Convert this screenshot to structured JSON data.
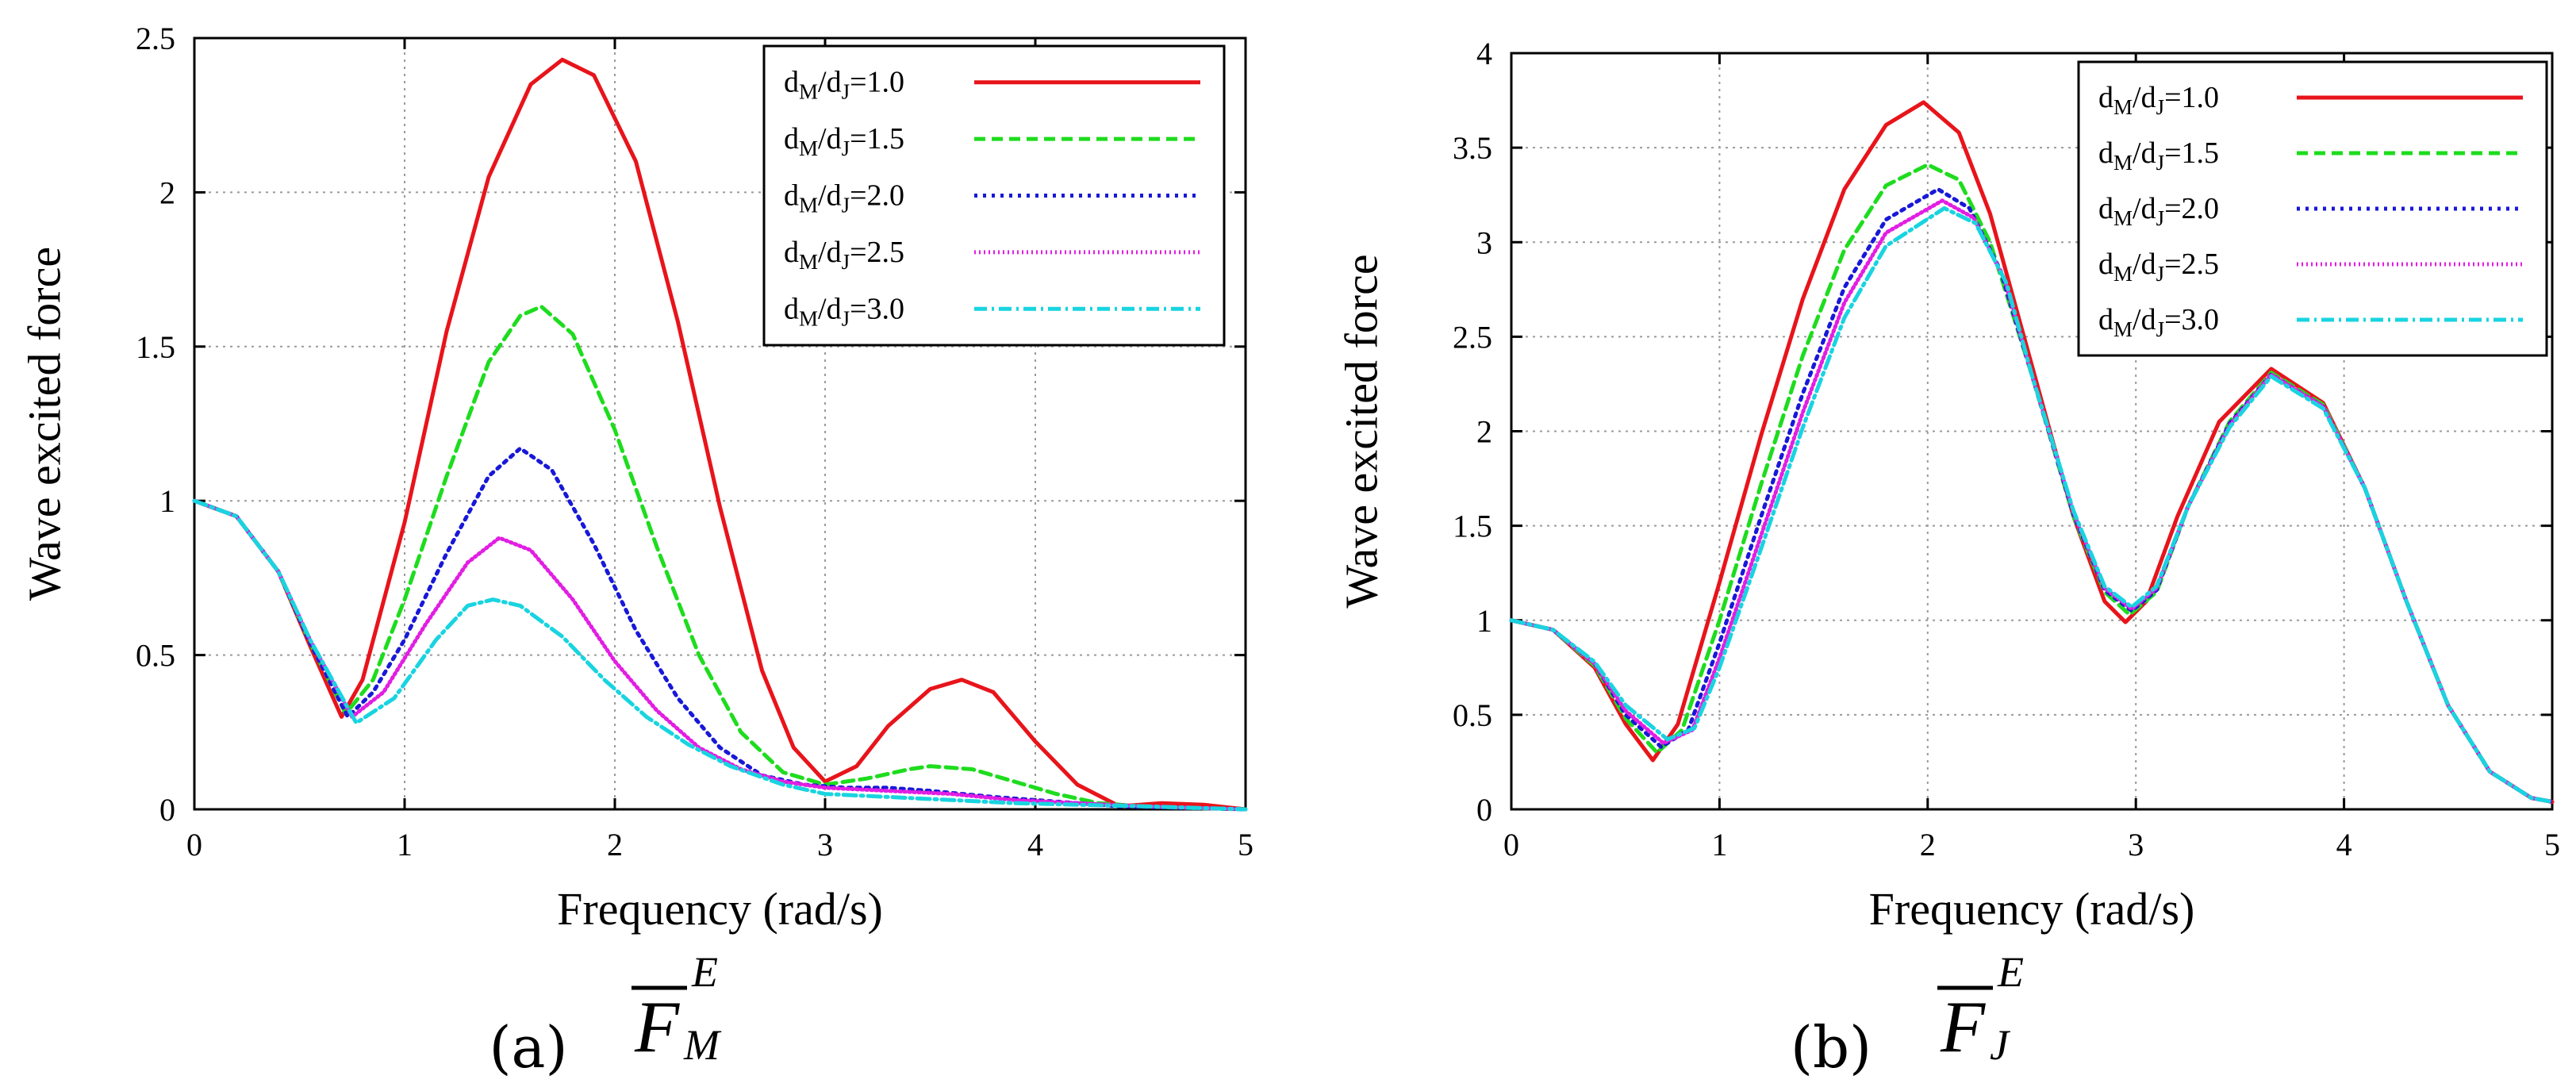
{
  "chart_data": [
    {
      "type": "line",
      "panel_label": "(a)",
      "symbol": {
        "base": "F",
        "sup": "E",
        "sub": "M"
      },
      "xlabel": "Frequency (rad/s)",
      "ylabel": "Wave excited force",
      "xlim": [
        0,
        5
      ],
      "ylim": [
        0,
        2.5
      ],
      "xticks": [
        "0",
        "1",
        "2",
        "3",
        "4",
        "5"
      ],
      "yticks": [
        "0",
        "0.5",
        "1",
        "1.5",
        "2",
        "2.5"
      ],
      "grid": true,
      "legend_position": "top-right",
      "series": [
        {
          "name": "dM/dJ=1.0",
          "legend": {
            "a": "d",
            "as": "M",
            "b": "/d",
            "bs": "J",
            "c": "=1.0"
          },
          "color": "#e8141b",
          "dash": "",
          "x": [
            0,
            0.2,
            0.4,
            0.55,
            0.7,
            0.8,
            1.0,
            1.2,
            1.4,
            1.6,
            1.75,
            1.9,
            2.1,
            2.3,
            2.5,
            2.7,
            2.85,
            3.0,
            3.15,
            3.3,
            3.5,
            3.65,
            3.8,
            4.0,
            4.2,
            4.4,
            4.6,
            4.8,
            5.0
          ],
          "y": [
            1.0,
            0.95,
            0.77,
            0.53,
            0.3,
            0.42,
            0.93,
            1.55,
            2.05,
            2.35,
            2.43,
            2.38,
            2.1,
            1.58,
            0.98,
            0.45,
            0.2,
            0.09,
            0.14,
            0.27,
            0.39,
            0.42,
            0.38,
            0.22,
            0.08,
            0.01,
            0.02,
            0.015,
            0.0
          ]
        },
        {
          "name": "dM/dJ=1.5",
          "legend": {
            "a": "d",
            "as": "M",
            "b": "/d",
            "bs": "J",
            "c": "=1.5"
          },
          "color": "#1edc1e",
          "dash": "14 8",
          "x": [
            0,
            0.2,
            0.4,
            0.55,
            0.72,
            0.85,
            1.0,
            1.2,
            1.4,
            1.55,
            1.65,
            1.8,
            2.0,
            2.2,
            2.4,
            2.6,
            2.8,
            3.0,
            3.2,
            3.4,
            3.5,
            3.7,
            3.9,
            4.1,
            4.3,
            4.5,
            4.7,
            5.0
          ],
          "y": [
            1.0,
            0.95,
            0.77,
            0.54,
            0.31,
            0.42,
            0.68,
            1.08,
            1.45,
            1.6,
            1.63,
            1.54,
            1.23,
            0.85,
            0.5,
            0.25,
            0.12,
            0.08,
            0.1,
            0.13,
            0.14,
            0.13,
            0.09,
            0.05,
            0.02,
            0.01,
            0.005,
            0.0
          ]
        },
        {
          "name": "dM/dJ=2.0",
          "legend": {
            "a": "d",
            "as": "M",
            "b": "/d",
            "bs": "J",
            "c": "=2.0"
          },
          "color": "#1818d8",
          "dash": "4 7",
          "x": [
            0,
            0.2,
            0.4,
            0.55,
            0.73,
            0.85,
            1.0,
            1.2,
            1.4,
            1.55,
            1.7,
            1.9,
            2.1,
            2.3,
            2.5,
            2.7,
            2.9,
            3.1,
            3.3,
            3.5,
            3.8,
            4.1,
            4.4,
            4.7,
            5.0
          ],
          "y": [
            1.0,
            0.95,
            0.77,
            0.54,
            0.3,
            0.38,
            0.55,
            0.83,
            1.08,
            1.17,
            1.1,
            0.86,
            0.58,
            0.36,
            0.2,
            0.11,
            0.08,
            0.07,
            0.07,
            0.06,
            0.04,
            0.025,
            0.01,
            0.005,
            0.0
          ]
        },
        {
          "name": "dM/dJ=2.5",
          "legend": {
            "a": "d",
            "as": "M",
            "b": "/d",
            "bs": "J",
            "c": "=2.5"
          },
          "color": "#e21ee2",
          "dash": "2 4",
          "x": [
            0,
            0.2,
            0.4,
            0.55,
            0.75,
            0.9,
            1.1,
            1.3,
            1.45,
            1.6,
            1.8,
            2.0,
            2.2,
            2.4,
            2.6,
            2.8,
            3.0,
            3.3,
            3.6,
            3.9,
            4.2,
            4.5,
            5.0
          ],
          "y": [
            1.0,
            0.95,
            0.77,
            0.55,
            0.3,
            0.38,
            0.6,
            0.8,
            0.88,
            0.84,
            0.68,
            0.48,
            0.32,
            0.2,
            0.13,
            0.09,
            0.07,
            0.06,
            0.05,
            0.03,
            0.02,
            0.01,
            0.0
          ]
        },
        {
          "name": "dM/dJ=3.0",
          "legend": {
            "a": "d",
            "as": "M",
            "b": "/d",
            "bs": "J",
            "c": "=3.0"
          },
          "color": "#18d4e0",
          "dash": "16 6 3 6",
          "x": [
            0,
            0.2,
            0.4,
            0.55,
            0.77,
            0.95,
            1.15,
            1.3,
            1.42,
            1.55,
            1.75,
            1.95,
            2.15,
            2.35,
            2.55,
            2.8,
            3.0,
            3.3,
            3.6,
            3.9,
            4.2,
            4.5,
            5.0
          ],
          "y": [
            1.0,
            0.95,
            0.77,
            0.55,
            0.28,
            0.36,
            0.55,
            0.66,
            0.68,
            0.66,
            0.56,
            0.42,
            0.3,
            0.21,
            0.14,
            0.08,
            0.05,
            0.04,
            0.03,
            0.02,
            0.015,
            0.01,
            0.0
          ]
        }
      ]
    },
    {
      "type": "line",
      "panel_label": "(b)",
      "symbol": {
        "base": "F",
        "sup": "E",
        "sub": "J"
      },
      "xlabel": "Frequency (rad/s)",
      "ylabel": "Wave excited force",
      "xlim": [
        0,
        5
      ],
      "ylim": [
        0,
        4
      ],
      "xticks": [
        "0",
        "1",
        "2",
        "3",
        "4",
        "5"
      ],
      "yticks": [
        "0",
        "0.5",
        "1",
        "1.5",
        "2",
        "2.5",
        "3",
        "3.5",
        "4"
      ],
      "grid": true,
      "legend_position": "top-right",
      "series": [
        {
          "name": "dM/dJ=1.0",
          "legend": {
            "a": "d",
            "as": "M",
            "b": "/d",
            "bs": "J",
            "c": "=1.0"
          },
          "color": "#e8141b",
          "dash": "",
          "x": [
            0,
            0.2,
            0.4,
            0.55,
            0.68,
            0.8,
            1.0,
            1.2,
            1.4,
            1.6,
            1.8,
            1.98,
            2.15,
            2.3,
            2.5,
            2.7,
            2.85,
            2.95,
            3.05,
            3.2,
            3.4,
            3.65,
            3.9,
            4.1,
            4.3,
            4.5,
            4.7,
            4.9,
            5.0
          ],
          "y": [
            1.0,
            0.95,
            0.75,
            0.45,
            0.26,
            0.45,
            1.2,
            1.98,
            2.7,
            3.28,
            3.62,
            3.74,
            3.58,
            3.15,
            2.35,
            1.55,
            1.1,
            0.99,
            1.1,
            1.55,
            2.05,
            2.33,
            2.15,
            1.7,
            1.1,
            0.55,
            0.2,
            0.06,
            0.04
          ]
        },
        {
          "name": "dM/dJ=1.5",
          "legend": {
            "a": "d",
            "as": "M",
            "b": "/d",
            "bs": "J",
            "c": "=1.5"
          },
          "color": "#1edc1e",
          "dash": "14 8",
          "x": [
            0,
            0.2,
            0.4,
            0.55,
            0.7,
            0.82,
            1.0,
            1.2,
            1.4,
            1.6,
            1.8,
            2.0,
            2.15,
            2.3,
            2.5,
            2.7,
            2.85,
            2.97,
            3.1,
            3.25,
            3.45,
            3.65,
            3.9,
            4.1,
            4.3,
            4.5,
            4.7,
            4.9,
            5.0
          ],
          "y": [
            1.0,
            0.95,
            0.76,
            0.48,
            0.3,
            0.42,
            1.0,
            1.72,
            2.4,
            2.96,
            3.3,
            3.41,
            3.33,
            3.0,
            2.3,
            1.55,
            1.15,
            1.03,
            1.15,
            1.6,
            2.05,
            2.31,
            2.14,
            1.7,
            1.1,
            0.55,
            0.2,
            0.06,
            0.04
          ]
        },
        {
          "name": "dM/dJ=2.0",
          "legend": {
            "a": "d",
            "as": "M",
            "b": "/d",
            "bs": "J",
            "c": "=2.0"
          },
          "color": "#1818d8",
          "dash": "4 7",
          "x": [
            0,
            0.2,
            0.4,
            0.55,
            0.72,
            0.85,
            1.0,
            1.2,
            1.4,
            1.6,
            1.8,
            2.05,
            2.2,
            2.35,
            2.5,
            2.7,
            2.85,
            2.98,
            3.1,
            3.25,
            3.45,
            3.65,
            3.9,
            4.1,
            4.3,
            4.5,
            4.7,
            4.9,
            5.0
          ],
          "y": [
            1.0,
            0.95,
            0.77,
            0.5,
            0.33,
            0.42,
            0.88,
            1.55,
            2.2,
            2.76,
            3.12,
            3.28,
            3.18,
            2.85,
            2.3,
            1.56,
            1.16,
            1.05,
            1.16,
            1.6,
            2.04,
            2.3,
            2.13,
            1.7,
            1.1,
            0.55,
            0.2,
            0.06,
            0.04
          ]
        },
        {
          "name": "dM/dJ=2.5",
          "legend": {
            "a": "d",
            "as": "M",
            "b": "/d",
            "bs": "J",
            "c": "=2.5"
          },
          "color": "#e21ee2",
          "dash": "2 4",
          "x": [
            0,
            0.2,
            0.4,
            0.55,
            0.73,
            0.87,
            1.0,
            1.2,
            1.4,
            1.6,
            1.8,
            2.07,
            2.22,
            2.37,
            2.5,
            2.7,
            2.85,
            2.98,
            3.1,
            3.25,
            3.45,
            3.65,
            3.9,
            4.1,
            4.3,
            4.5,
            4.7,
            4.9,
            5.0
          ],
          "y": [
            1.0,
            0.95,
            0.77,
            0.52,
            0.35,
            0.42,
            0.8,
            1.45,
            2.1,
            2.68,
            3.05,
            3.22,
            3.13,
            2.8,
            2.3,
            1.57,
            1.17,
            1.06,
            1.17,
            1.6,
            2.03,
            2.3,
            2.13,
            1.7,
            1.1,
            0.55,
            0.2,
            0.06,
            0.04
          ]
        },
        {
          "name": "dM/dJ=3.0",
          "legend": {
            "a": "d",
            "as": "M",
            "b": "/d",
            "bs": "J",
            "c": "=3.0"
          },
          "color": "#18d4e0",
          "dash": "16 6 3 6",
          "x": [
            0,
            0.2,
            0.4,
            0.55,
            0.75,
            0.88,
            1.0,
            1.2,
            1.4,
            1.6,
            1.8,
            2.08,
            2.23,
            2.38,
            2.5,
            2.7,
            2.85,
            2.98,
            3.1,
            3.25,
            3.45,
            3.65,
            3.9,
            4.1,
            4.3,
            4.5,
            4.7,
            4.9,
            5.0
          ],
          "y": [
            1.0,
            0.95,
            0.78,
            0.55,
            0.37,
            0.43,
            0.75,
            1.38,
            2.02,
            2.6,
            2.98,
            3.18,
            3.1,
            2.78,
            2.3,
            1.58,
            1.18,
            1.07,
            1.18,
            1.6,
            2.02,
            2.29,
            2.12,
            1.7,
            1.1,
            0.55,
            0.2,
            0.06,
            0.04
          ]
        }
      ]
    }
  ]
}
